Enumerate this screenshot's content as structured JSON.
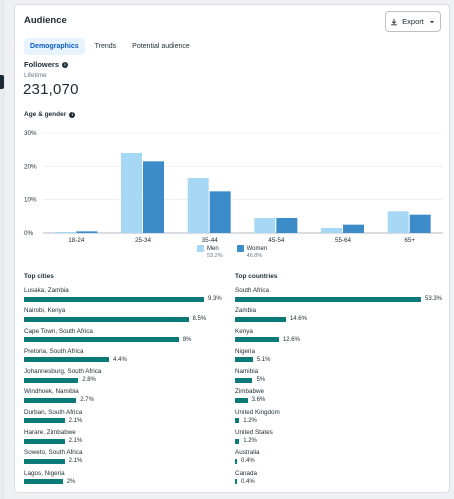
{
  "card": {
    "title": "Audience",
    "export_label": "Export",
    "tabs": [
      {
        "label": "Demographics",
        "active": true
      },
      {
        "label": "Trends",
        "active": false
      },
      {
        "label": "Potential audience",
        "active": false
      }
    ]
  },
  "followers": {
    "label": "Followers",
    "period": "Lifetime",
    "value": "231,070"
  },
  "age_gender": {
    "label": "Age & gender"
  },
  "colors": {
    "men": "#a6d8f5",
    "women": "#3b8cc9",
    "list_bar": "#0a7a78",
    "grid": "#e4e6e9"
  },
  "chart_data": [
    {
      "type": "bar",
      "title": "",
      "xlabel": "",
      "ylabel": "",
      "categories": [
        "18-24",
        "25-34",
        "35-44",
        "45-54",
        "55-64",
        "65+"
      ],
      "series": [
        {
          "name": "Men",
          "values": [
            0.3,
            24,
            16.5,
            4.5,
            1.5,
            6.5
          ],
          "share": "53.2%"
        },
        {
          "name": "Women",
          "values": [
            0.5,
            21.5,
            12.5,
            4.5,
            2.5,
            5.5
          ],
          "share": "46.8%"
        }
      ],
      "ylim": [
        0,
        30
      ],
      "yticks": [
        "0%",
        "10%",
        "20%",
        "30%"
      ],
      "grid": true,
      "legend": "bottom-center"
    },
    {
      "type": "bar",
      "title": "Top cities",
      "orientation": "horizontal",
      "categories": [
        "Lusaka, Zambia",
        "Nairobi, Kenya",
        "Cape Town, South Africa",
        "Pretoria, South Africa",
        "Johannesburg, South Africa",
        "Windhoek, Namibia",
        "Durban, South Africa",
        "Harare, Zimbabwe",
        "Soweto, South Africa",
        "Lagos, Nigeria"
      ],
      "values": [
        9.3,
        8.5,
        8,
        4.4,
        2.8,
        2.7,
        2.1,
        2.1,
        2.1,
        2
      ],
      "labels": [
        "9.3%",
        "8.5%",
        "8%",
        "4.4%",
        "2.8%",
        "2.7%",
        "2.1%",
        "2.1%",
        "2.1%",
        "2%"
      ]
    },
    {
      "type": "bar",
      "title": "Top countries",
      "orientation": "horizontal",
      "categories": [
        "South Africa",
        "Zambia",
        "Kenya",
        "Nigeria",
        "Namibia",
        "Zimbabwe",
        "United Kingdom",
        "United States",
        "Australia",
        "Canada"
      ],
      "values": [
        53.3,
        14.6,
        12.6,
        5.1,
        5,
        3.6,
        1.2,
        1.2,
        0.4,
        0.4
      ],
      "labels": [
        "53.3%",
        "14.6%",
        "12.6%",
        "5.1%",
        "5%",
        "3.6%",
        "1.2%",
        "1.2%",
        "0.4%",
        "0.4%"
      ]
    }
  ]
}
